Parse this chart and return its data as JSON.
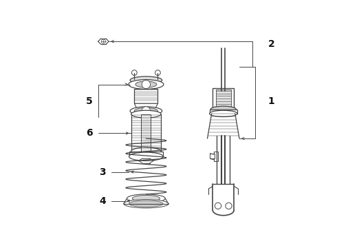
{
  "bg_color": "#ffffff",
  "line_color": "#444444",
  "label_color": "#111111",
  "label_fontsize": 10
}
